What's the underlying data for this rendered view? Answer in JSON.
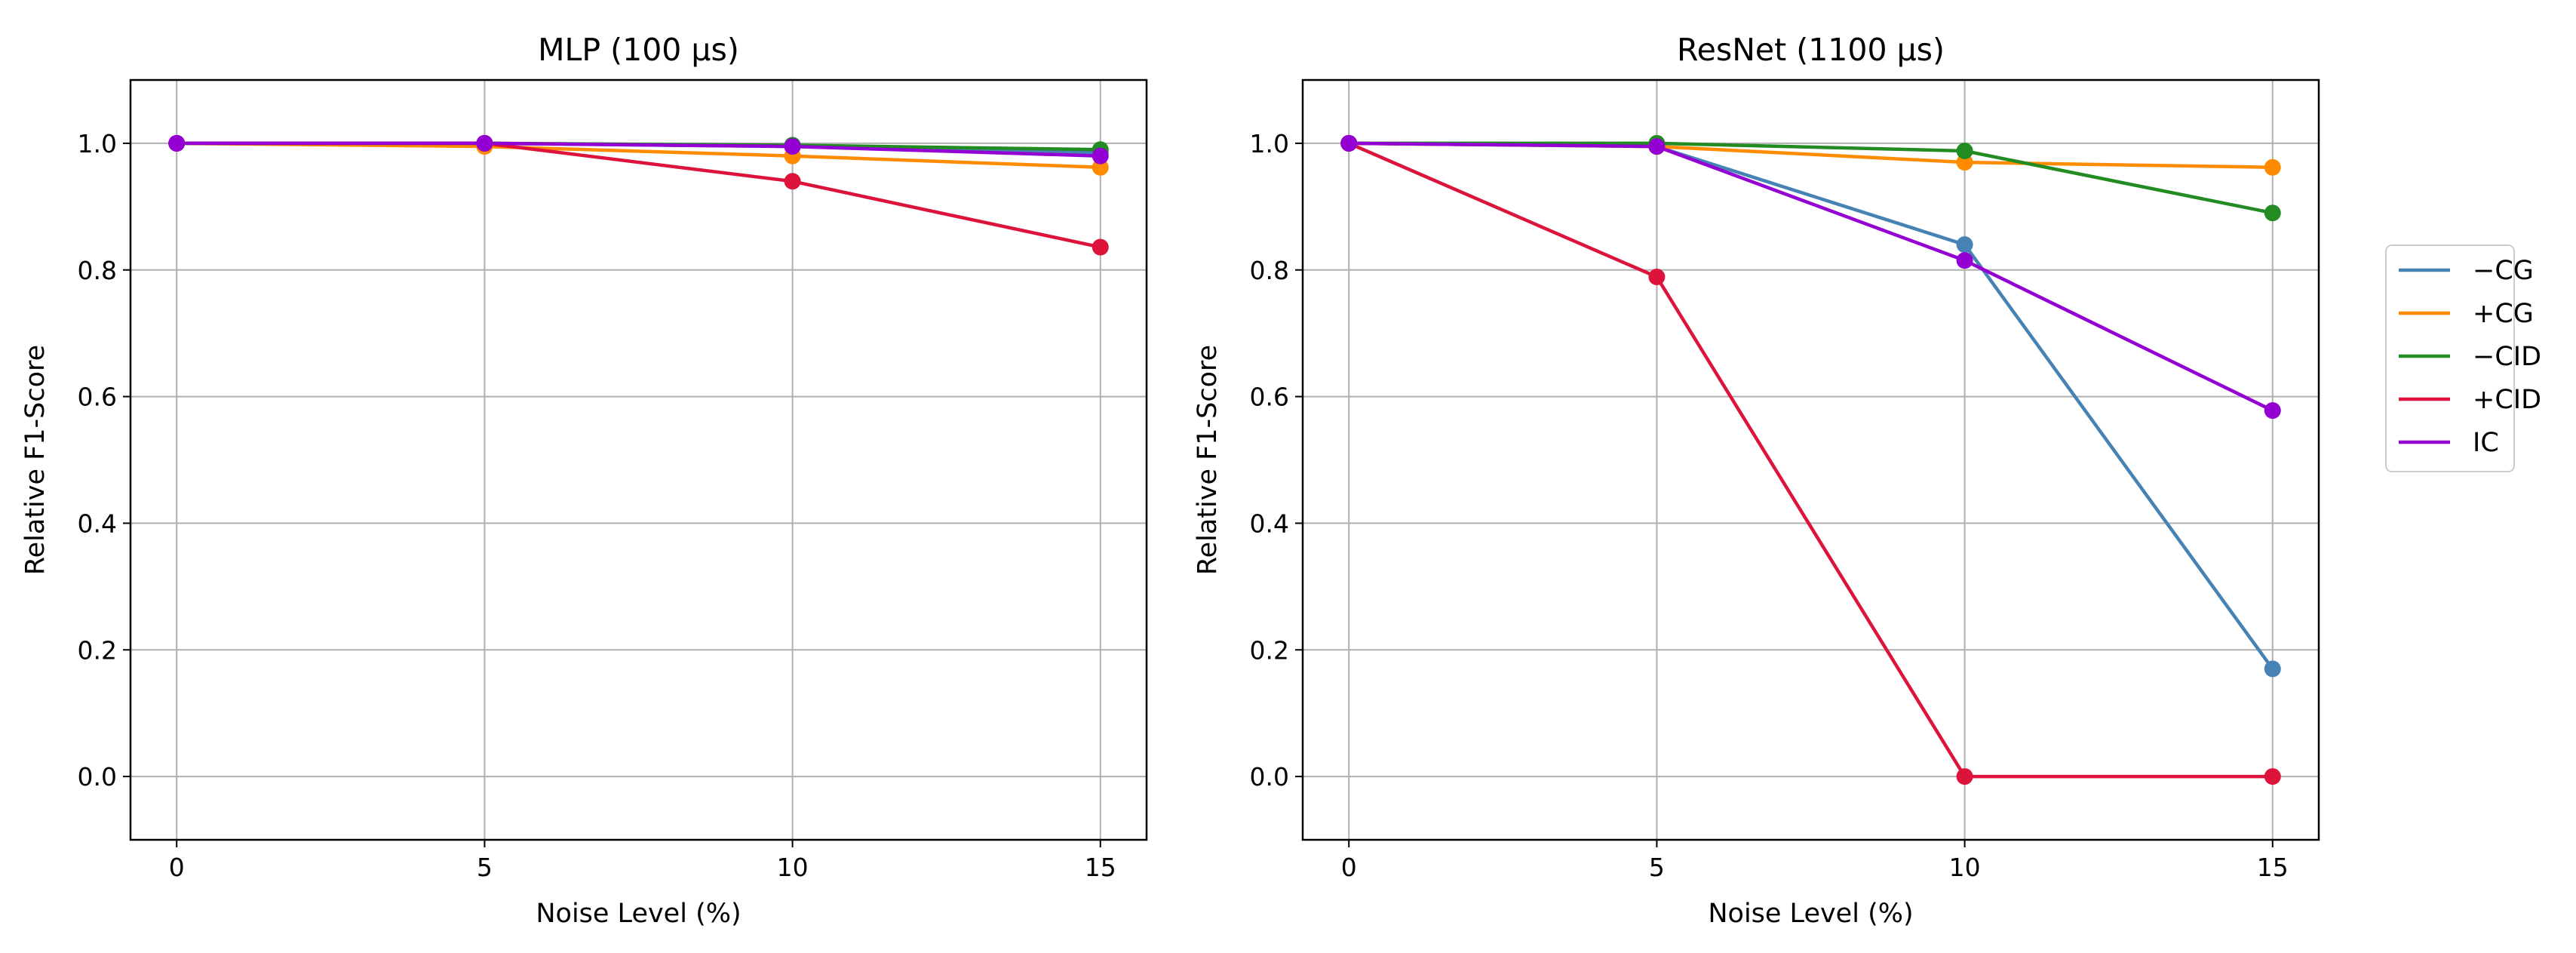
{
  "chart_data": [
    {
      "type": "line",
      "title": "MLP (100 µs)",
      "xlabel": "Noise Level (%)",
      "ylabel": "Relative F1-Score",
      "x": [
        0,
        5,
        10,
        15
      ],
      "xticks": [
        "0",
        "5",
        "10",
        "15"
      ],
      "yticks": [
        "0.0",
        "0.2",
        "0.4",
        "0.6",
        "0.8",
        "1.0"
      ],
      "xlim": [
        -0.75,
        15.75
      ],
      "ylim": [
        -0.1,
        1.1
      ],
      "grid": true,
      "series": [
        {
          "name": "−CG",
          "color": "#4682b4",
          "values": [
            1.0,
            1.0,
            0.995,
            0.985
          ]
        },
        {
          "name": "+CG",
          "color": "#ff8c00",
          "values": [
            1.0,
            0.995,
            0.98,
            0.962
          ]
        },
        {
          "name": "−CID",
          "color": "#228b22",
          "values": [
            1.0,
            1.0,
            0.997,
            0.99
          ]
        },
        {
          "name": "+CID",
          "color": "#dc143c",
          "values": [
            1.0,
            1.0,
            0.94,
            0.836
          ]
        },
        {
          "name": "IC",
          "color": "#9400d3",
          "values": [
            1.0,
            1.0,
            0.995,
            0.98
          ]
        }
      ]
    },
    {
      "type": "line",
      "title": "ResNet (1100 µs)",
      "xlabel": "Noise Level (%)",
      "ylabel": "Relative F1-Score",
      "x": [
        0,
        5,
        10,
        15
      ],
      "xticks": [
        "0",
        "5",
        "10",
        "15"
      ],
      "yticks": [
        "0.0",
        "0.2",
        "0.4",
        "0.6",
        "0.8",
        "1.0"
      ],
      "xlim": [
        -0.75,
        15.75
      ],
      "ylim": [
        -0.1,
        1.1
      ],
      "grid": true,
      "series": [
        {
          "name": "−CG",
          "color": "#4682b4",
          "values": [
            1.0,
            0.995,
            0.84,
            0.17
          ]
        },
        {
          "name": "+CG",
          "color": "#ff8c00",
          "values": [
            1.0,
            0.995,
            0.97,
            0.962
          ]
        },
        {
          "name": "−CID",
          "color": "#228b22",
          "values": [
            1.0,
            1.0,
            0.988,
            0.89
          ]
        },
        {
          "name": "+CID",
          "color": "#dc143c",
          "values": [
            1.0,
            0.789,
            0.0,
            0.0
          ]
        },
        {
          "name": "IC",
          "color": "#9400d3",
          "values": [
            1.0,
            0.995,
            0.815,
            0.578
          ]
        }
      ]
    }
  ],
  "legend": {
    "placement": "right",
    "entries": [
      {
        "label": "−CG",
        "color": "#4682b4"
      },
      {
        "label": "+CG",
        "color": "#ff8c00"
      },
      {
        "label": "−CID",
        "color": "#228b22"
      },
      {
        "label": "+CID",
        "color": "#dc143c"
      },
      {
        "label": "IC",
        "color": "#9400d3"
      }
    ]
  }
}
